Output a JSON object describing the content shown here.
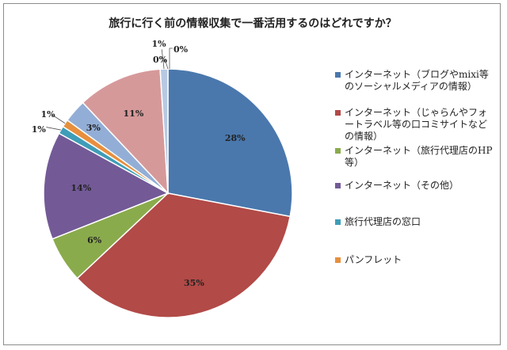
{
  "chart_data": {
    "type": "pie",
    "title": "旅行に行く前の情報収集で一番活用するのはどれですか？",
    "labels": [
      "インターネット（ブログやmixi等のソーシャルメディアの情報）",
      "インターネット（じゃらんやフォートラベル等の口コミサイトなどの情報）",
      "インターネット（旅行代理店のHP等）",
      "インターネット（その他）",
      "旅行代理店の窓口",
      "パンフレット",
      "",
      "",
      "",
      ""
    ],
    "values": [
      28,
      35,
      6,
      14,
      1,
      1,
      3,
      11,
      1,
      0
    ],
    "data_labels": [
      "28%",
      "35%",
      "6%",
      "14%",
      "1%",
      "1%",
      "3%",
      "11%",
      "1%",
      "0%"
    ],
    "extra_label": "0%",
    "colors": [
      "#4a78ad",
      "#b24a47",
      "#8aab4c",
      "#735a97",
      "#3f9db8",
      "#e88f3e",
      "#93aed6",
      "#d6999a",
      "#b7c9e2",
      "#d0d0d0"
    ],
    "legend_position": "right"
  }
}
